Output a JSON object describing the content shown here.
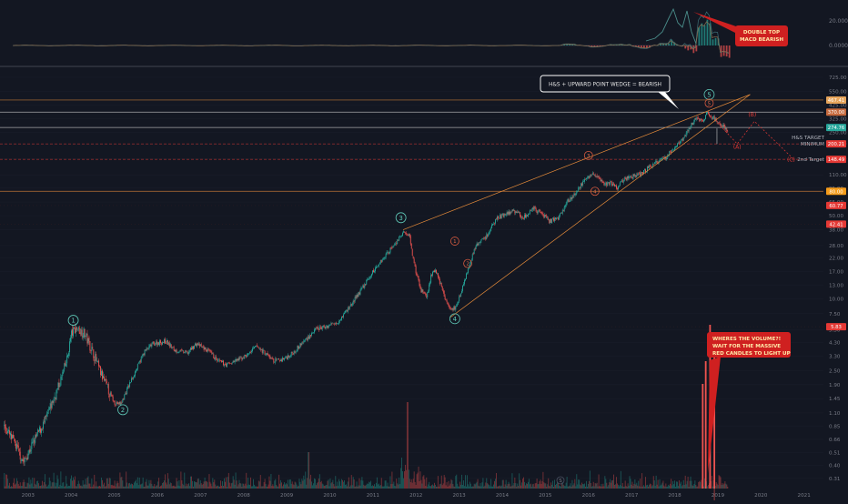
{
  "chart_data": {
    "type": "candlestick",
    "scale": "log",
    "series": "price",
    "x_ticks": [
      "2003",
      "2004",
      "2005",
      "2006",
      "2007",
      "2008",
      "2009",
      "2010",
      "2011",
      "2012",
      "2013",
      "2014",
      "2015",
      "2016",
      "2017",
      "2018",
      "2019",
      "2020",
      "2021"
    ],
    "y_ticks": [
      0.31,
      0.4,
      0.51,
      0.66,
      0.85,
      1.1,
      1.45,
      1.9,
      2.5,
      3.3,
      4.3,
      5.5,
      7.5,
      10.0,
      13.0,
      17.0,
      22.0,
      28.0,
      38.0,
      50.0,
      65.0,
      85.0,
      110.0,
      150.0,
      200.0,
      250.0,
      325.0,
      425.0,
      550.0,
      725.0
    ],
    "price_path": [
      [
        2002.55,
        0.85
      ],
      [
        2002.8,
        0.6
      ],
      [
        2003.0,
        0.42
      ],
      [
        2003.2,
        0.6
      ],
      [
        2003.5,
        0.95
      ],
      [
        2003.8,
        1.8
      ],
      [
        2004.0,
        3.0
      ],
      [
        2004.1,
        5.0
      ],
      [
        2004.2,
        5.7
      ],
      [
        2004.4,
        5.2
      ],
      [
        2004.6,
        3.6
      ],
      [
        2004.8,
        2.3
      ],
      [
        2005.0,
        1.6
      ],
      [
        2005.1,
        1.35
      ],
      [
        2005.25,
        1.3
      ],
      [
        2005.5,
        2.1
      ],
      [
        2005.8,
        3.6
      ],
      [
        2006.0,
        4.2
      ],
      [
        2006.3,
        4.4
      ],
      [
        2006.5,
        3.7
      ],
      [
        2006.8,
        3.5
      ],
      [
        2007.0,
        4.2
      ],
      [
        2007.3,
        3.6
      ],
      [
        2007.5,
        3.0
      ],
      [
        2007.7,
        2.8
      ],
      [
        2008.0,
        3.1
      ],
      [
        2008.2,
        3.4
      ],
      [
        2008.4,
        4.0
      ],
      [
        2008.6,
        3.5
      ],
      [
        2008.8,
        3.0
      ],
      [
        2009.0,
        3.1
      ],
      [
        2009.2,
        3.4
      ],
      [
        2009.5,
        4.4
      ],
      [
        2009.8,
        5.6
      ],
      [
        2010.0,
        5.8
      ],
      [
        2010.3,
        6.5
      ],
      [
        2010.6,
        9.0
      ],
      [
        2010.9,
        13.0
      ],
      [
        2011.2,
        19.0
      ],
      [
        2011.5,
        26.0
      ],
      [
        2011.7,
        32.0
      ],
      [
        2011.85,
        37.0
      ],
      [
        2011.95,
        33.0
      ],
      [
        2012.05,
        20.0
      ],
      [
        2012.2,
        12.0
      ],
      [
        2012.35,
        10.5
      ],
      [
        2012.45,
        15.5
      ],
      [
        2012.55,
        18.0
      ],
      [
        2012.7,
        12.0
      ],
      [
        2012.8,
        9.5
      ],
      [
        2012.95,
        8.0
      ],
      [
        2013.05,
        9.0
      ],
      [
        2013.2,
        13.0
      ],
      [
        2013.35,
        20.0
      ],
      [
        2013.5,
        28.0
      ],
      [
        2013.7,
        32.0
      ],
      [
        2013.85,
        40.0
      ],
      [
        2014.0,
        48.0
      ],
      [
        2014.2,
        52.0
      ],
      [
        2014.4,
        55.0
      ],
      [
        2014.6,
        48.0
      ],
      [
        2014.8,
        58.0
      ],
      [
        2015.0,
        52.0
      ],
      [
        2015.2,
        45.0
      ],
      [
        2015.4,
        48.0
      ],
      [
        2015.6,
        65.0
      ],
      [
        2015.8,
        75.0
      ],
      [
        2016.0,
        100.0
      ],
      [
        2016.2,
        110.0
      ],
      [
        2016.35,
        105.0
      ],
      [
        2016.45,
        90.0
      ],
      [
        2016.6,
        95.0
      ],
      [
        2016.75,
        85.0
      ],
      [
        2016.9,
        100.0
      ],
      [
        2017.1,
        105.0
      ],
      [
        2017.35,
        115.0
      ],
      [
        2017.6,
        135.0
      ],
      [
        2017.9,
        155.0
      ],
      [
        2018.05,
        180.0
      ],
      [
        2018.25,
        210.0
      ],
      [
        2018.45,
        280.0
      ],
      [
        2018.6,
        330.0
      ],
      [
        2018.75,
        310.0
      ],
      [
        2018.85,
        360.0
      ],
      [
        2019.0,
        330.0
      ],
      [
        2019.1,
        300.0
      ],
      [
        2019.2,
        290.0
      ],
      [
        2019.35,
        250.0
      ]
    ],
    "wave_labels": [
      {
        "label": "1",
        "x": 2004.15,
        "y": 6.6
      },
      {
        "label": "2",
        "x": 2005.3,
        "y": 1.17
      },
      {
        "label": "3",
        "x": 2011.75,
        "y": 48.0
      },
      {
        "label": "4",
        "x": 2013.0,
        "y": 6.8
      },
      {
        "label": "5",
        "x": 2018.9,
        "y": 520.0
      },
      {
        "label": "1",
        "x": 2013.0,
        "y": 30.5
      },
      {
        "label": "2",
        "x": 2013.3,
        "y": 19.8
      },
      {
        "label": "3",
        "x": 2016.1,
        "y": 160.0
      },
      {
        "label": "4",
        "x": 2016.25,
        "y": 80.0
      },
      {
        "label": "5",
        "x": 2018.9,
        "y": 440.0
      }
    ],
    "corrective_labels": [
      {
        "label": "(A)",
        "x": 2019.55,
        "y": 182.0
      },
      {
        "label": "(B)",
        "x": 2019.9,
        "y": 340.0
      },
      {
        "label": "(C)",
        "x": 2020.8,
        "y": 142.0
      }
    ],
    "price_tags": [
      {
        "value": "467.41",
        "y": 467.41,
        "color": "#e6a45a"
      },
      {
        "value": "370.00",
        "y": 370.0,
        "color": "#c66a3e"
      },
      {
        "value": "274.76",
        "y": 274.76,
        "color": "#26a69a"
      },
      {
        "value": "200.21",
        "y": 200.21,
        "color": "#e53935"
      },
      {
        "value": "148.49",
        "y": 148.49,
        "color": "#e53935"
      },
      {
        "value": "80.00",
        "y": 80.0,
        "color": "#f59c1a"
      },
      {
        "value": "60.77",
        "y": 60.77,
        "color": "#e53935"
      },
      {
        "value": "42.41",
        "y": 42.41,
        "color": "#e53935"
      },
      {
        "value": "5.83",
        "y": 5.83,
        "color": "#e53935"
      }
    ],
    "target_labels": [
      {
        "line1": "H&S TARGET",
        "line2": "MINIMUM",
        "y": 200.21
      },
      {
        "line1": "2nd Target",
        "line2": "",
        "y": 148.49
      }
    ],
    "indicator": {
      "name": "MACD",
      "y_ticks": [
        "20.0000",
        "0.0000"
      ]
    },
    "annotations": [
      {
        "id": "double-top",
        "text": [
          "DOUBLE TOP",
          "MACD BEARISH"
        ]
      },
      {
        "id": "hs-wedge",
        "text": [
          "H&S + UPWARD POINT WEDGE = BEARISH"
        ]
      },
      {
        "id": "volume",
        "text": [
          "WHERES THE VOLUME?!",
          "WAIT FOR THE MASSIVE",
          "RED CANDLES TO LIGHT UP"
        ]
      }
    ],
    "volume_marker": "S",
    "colors": {
      "up": "#26a69a",
      "down": "#ef5350",
      "wedge": "#e58b3a",
      "grid": "#1e222d",
      "background": "#131722"
    }
  }
}
